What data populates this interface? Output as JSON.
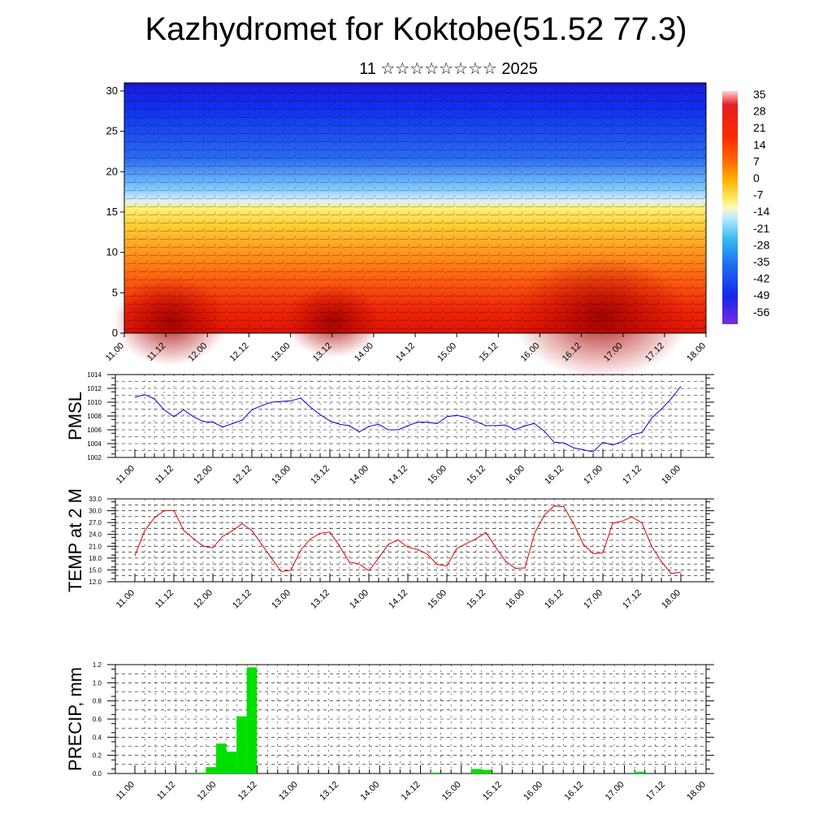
{
  "title": "Kazhydromet for Koktobe(51.52 77.3)",
  "subtitle": "11 ☆☆☆☆☆☆☆☆ 2025",
  "time_labels": [
    "11.00",
    "11.12",
    "12.00",
    "12.12",
    "13.00",
    "13.12",
    "14.00",
    "14.12",
    "15.00",
    "15.12",
    "16.00",
    "16.12",
    "17.00",
    "17.12",
    "18.00"
  ],
  "chart_data": [
    {
      "type": "heatmap",
      "name": "vertical-cross-section",
      "y_ticks": [
        0,
        5,
        10,
        15,
        20,
        25,
        30
      ],
      "ylim": [
        0,
        31
      ],
      "colorbar_labels": [
        "35",
        "28",
        "21",
        "14",
        "7",
        "0",
        "-7",
        "-14",
        "-21",
        "-28",
        "-35",
        "-42",
        "-49",
        "-56"
      ],
      "colors": {
        "hot": "#b80000",
        "warm": "#ff6a00",
        "neutral": "#fff27a",
        "cool": "#8fd6ff",
        "cold": "#1020e0",
        "coldest": "#7a2be0"
      }
    },
    {
      "type": "line",
      "name": "pmsl",
      "ylabel": "PMSL",
      "ylim": [
        1002,
        1014
      ],
      "y_ticks": [
        "1002",
        "1004",
        "1006",
        "1008",
        "1010",
        "1012",
        "1014"
      ],
      "color": "#0000e0",
      "values": [
        1010.7,
        1011.1,
        1010.5,
        1008.9,
        1007.9,
        1008.9,
        1007.9,
        1007.2,
        1007.1,
        1006.4,
        1006.9,
        1007.4,
        1008.9,
        1009.5,
        1010.0,
        1010.1,
        1010.2,
        1010.6,
        1009.3,
        1008.2,
        1007.3,
        1006.8,
        1006.6,
        1005.7,
        1006.5,
        1006.8,
        1006.0,
        1006.0,
        1006.6,
        1007.1,
        1007.1,
        1006.9,
        1007.9,
        1008.1,
        1007.8,
        1007.2,
        1006.6,
        1006.6,
        1006.7,
        1006.0,
        1006.6,
        1006.9,
        1005.8,
        1004.2,
        1004.1,
        1003.4,
        1003.1,
        1002.8,
        1004.2,
        1003.8,
        1004.3,
        1005.3,
        1005.6,
        1007.7,
        1009.0,
        1010.5,
        1012.3
      ]
    },
    {
      "type": "line",
      "name": "temp-2m",
      "ylabel": "TEMP at 2 M",
      "ylim": [
        12,
        33
      ],
      "y_ticks": [
        "12.0",
        "15.0",
        "18.0",
        "21.0",
        "24.0",
        "27.0",
        "30.0",
        "33.0"
      ],
      "color": "#e00000",
      "values": [
        18.6,
        24.9,
        28.2,
        30.0,
        30.1,
        25.0,
        23.0,
        21.0,
        20.6,
        23.5,
        24.9,
        26.7,
        25.0,
        21.5,
        18.0,
        14.6,
        14.9,
        20.0,
        22.8,
        24.3,
        24.6,
        21.0,
        17.0,
        16.5,
        14.8,
        18.0,
        21.5,
        22.6,
        20.7,
        20.2,
        19.0,
        16.4,
        16.0,
        20.4,
        21.7,
        22.9,
        24.5,
        20.8,
        17.3,
        15.4,
        15.5,
        24.3,
        28.9,
        31.2,
        31.0,
        26.7,
        21.5,
        19.1,
        19.3,
        26.8,
        27.4,
        28.4,
        26.9,
        21.0,
        17.1,
        14.1,
        14.4
      ]
    },
    {
      "type": "bar",
      "name": "precip",
      "ylabel": "PRECIP, mm",
      "ylim": [
        0,
        1.2
      ],
      "y_ticks": [
        "0.0",
        "0.2",
        "0.4",
        "0.6",
        "0.8",
        "1.0",
        "1.2"
      ],
      "color": "#00e000",
      "values": [
        0,
        0,
        0,
        0,
        0,
        0,
        0,
        0.01,
        0.07,
        0.33,
        0.24,
        0.63,
        1.17,
        0,
        0,
        0,
        0,
        0,
        0,
        0,
        0,
        0,
        0,
        0,
        0,
        0,
        0,
        0,
        0,
        0,
        0.01,
        0,
        0,
        0,
        0.05,
        0.04,
        0,
        0,
        0,
        0,
        0,
        0,
        0,
        0,
        0,
        0,
        0,
        0,
        0,
        0,
        0.02,
        0,
        0,
        0,
        0,
        0
      ]
    }
  ]
}
